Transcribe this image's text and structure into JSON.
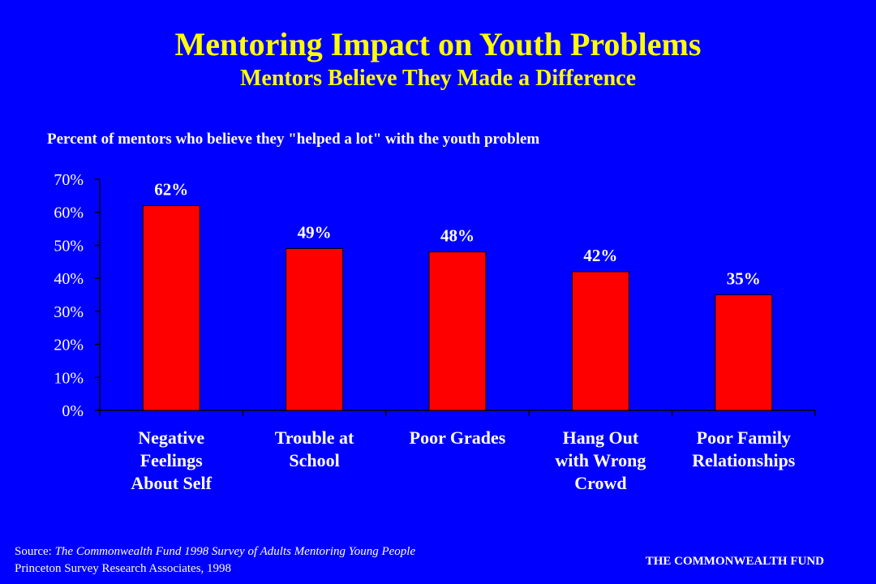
{
  "slide": {
    "title": "Mentoring Impact on Youth Problems",
    "subtitle": "Mentors Believe They Made a Difference",
    "caption": "Percent of mentors who believe they \"helped a lot\" with the youth problem",
    "source_prefix": "Source: ",
    "source_title": "The Commonwealth Fund 1998 Survey of Adults Mentoring Young People",
    "source_line2": "Princeton Survey Research Associates, 1998",
    "footer_brand": "THE COMMONWEALTH FUND"
  },
  "colors": {
    "background": "#0000ff",
    "title": "#ffff00",
    "bar": "#ff0000",
    "text": "#ffffff"
  },
  "chart_data": {
    "type": "bar",
    "title": "",
    "xlabel": "",
    "ylabel": "",
    "categories": [
      [
        "Negative",
        "Feelings",
        "About Self"
      ],
      [
        "Trouble at",
        "School"
      ],
      [
        "Poor Grades"
      ],
      [
        "Hang Out",
        "with Wrong",
        "Crowd"
      ],
      [
        "Poor Family",
        "Relationships"
      ]
    ],
    "values": [
      62,
      49,
      48,
      42,
      35
    ],
    "data_labels": [
      "62%",
      "49%",
      "48%",
      "42%",
      "35%"
    ],
    "ylim": [
      0,
      70
    ],
    "yticks": [
      0,
      10,
      20,
      30,
      40,
      50,
      60,
      70
    ],
    "ytick_labels": [
      "0%",
      "10%",
      "20%",
      "30%",
      "40%",
      "50%",
      "60%",
      "70%"
    ],
    "grid": false,
    "legend": "none"
  }
}
